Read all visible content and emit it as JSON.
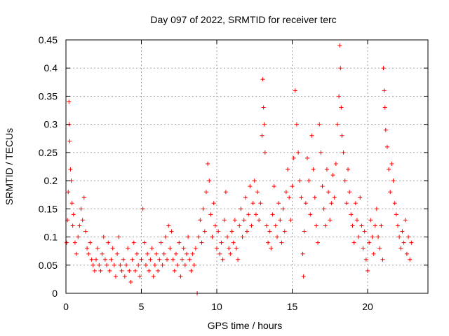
{
  "chart_data": {
    "type": "scatter",
    "title": "Day 097 of 2022, SRMTID for receiver terc",
    "xlabel": "GPS time / hours",
    "ylabel": "SRMTID / TECUs",
    "xlim": [
      0,
      24
    ],
    "ylim": [
      0,
      0.45
    ],
    "xticks": [
      0,
      5,
      10,
      15,
      20
    ],
    "xtick_labels": [
      "0",
      "5",
      "10",
      "15",
      "20"
    ],
    "yticks": [
      0,
      0.05,
      0.1,
      0.15,
      0.2,
      0.25,
      0.3,
      0.35,
      0.4,
      0.45
    ],
    "ytick_labels": [
      "0",
      "0.05",
      "0.1",
      "0.15",
      "0.2",
      "0.25",
      "0.3",
      "0.35",
      "0.4",
      "0.45"
    ],
    "grid": true,
    "marker": "+",
    "color": "#ff0000",
    "series": [
      {
        "points": [
          [
            0.05,
            0.09
          ],
          [
            0.1,
            0.13
          ],
          [
            0.15,
            0.18
          ],
          [
            0.2,
            0.34
          ],
          [
            0.22,
            0.3
          ],
          [
            0.25,
            0.27
          ],
          [
            0.3,
            0.22
          ],
          [
            0.35,
            0.2
          ],
          [
            0.4,
            0.16
          ],
          [
            0.45,
            0.12
          ],
          [
            0.5,
            0.14
          ],
          [
            0.6,
            0.09
          ],
          [
            0.7,
            0.07
          ],
          [
            0.8,
            0.1
          ],
          [
            0.9,
            0.12
          ],
          [
            1.0,
            0.15
          ],
          [
            1.1,
            0.13
          ],
          [
            1.2,
            0.17
          ],
          [
            1.3,
            0.11
          ],
          [
            1.4,
            0.08
          ],
          [
            1.5,
            0.07
          ],
          [
            1.6,
            0.09
          ],
          [
            1.7,
            0.06
          ],
          [
            1.8,
            0.05
          ],
          [
            1.9,
            0.04
          ],
          [
            2.0,
            0.06
          ],
          [
            2.1,
            0.08
          ],
          [
            2.2,
            0.05
          ],
          [
            2.3,
            0.04
          ],
          [
            2.4,
            0.07
          ],
          [
            2.5,
            0.1
          ],
          [
            2.6,
            0.06
          ],
          [
            2.7,
            0.05
          ],
          [
            2.8,
            0.09
          ],
          [
            2.9,
            0.04
          ],
          [
            3.0,
            0.06
          ],
          [
            3.1,
            0.08
          ],
          [
            3.2,
            0.05
          ],
          [
            3.3,
            0.03
          ],
          [
            3.4,
            0.07
          ],
          [
            3.5,
            0.1
          ],
          [
            3.6,
            0.05
          ],
          [
            3.7,
            0.04
          ],
          [
            3.8,
            0.06
          ],
          [
            3.9,
            0.03
          ],
          [
            4.0,
            0.05
          ],
          [
            4.1,
            0.08
          ],
          [
            4.2,
            0.04
          ],
          [
            4.3,
            0.02
          ],
          [
            4.4,
            0.06
          ],
          [
            4.5,
            0.09
          ],
          [
            4.6,
            0.04
          ],
          [
            4.7,
            0.07
          ],
          [
            4.8,
            0.05
          ],
          [
            4.9,
            0.03
          ],
          [
            5.0,
            0.06
          ],
          [
            5.1,
            0.15
          ],
          [
            5.2,
            0.09
          ],
          [
            5.3,
            0.05
          ],
          [
            5.4,
            0.07
          ],
          [
            5.5,
            0.04
          ],
          [
            5.6,
            0.06
          ],
          [
            5.7,
            0.08
          ],
          [
            5.8,
            0.03
          ],
          [
            5.9,
            0.05
          ],
          [
            6.0,
            0.07
          ],
          [
            6.1,
            0.04
          ],
          [
            6.2,
            0.06
          ],
          [
            6.3,
            0.09
          ],
          [
            6.4,
            0.05
          ],
          [
            6.5,
            0.07
          ],
          [
            6.6,
            0.1
          ],
          [
            6.7,
            0.06
          ],
          [
            6.8,
            0.12
          ],
          [
            6.9,
            0.08
          ],
          [
            7.0,
            0.11
          ],
          [
            7.1,
            0.06
          ],
          [
            7.2,
            0.04
          ],
          [
            7.3,
            0.07
          ],
          [
            7.4,
            0.05
          ],
          [
            7.5,
            0.09
          ],
          [
            7.6,
            0.03
          ],
          [
            7.7,
            0.06
          ],
          [
            7.8,
            0.08
          ],
          [
            7.9,
            0.05
          ],
          [
            8.0,
            0.07
          ],
          [
            8.1,
            0.1
          ],
          [
            8.2,
            0.06
          ],
          [
            8.3,
            0.04
          ],
          [
            8.4,
            0.07
          ],
          [
            8.5,
            0.05
          ],
          [
            8.6,
            0.08
          ],
          [
            8.7,
            0.0
          ],
          [
            8.8,
            0.1
          ],
          [
            8.9,
            0.13
          ],
          [
            9.0,
            0.09
          ],
          [
            9.1,
            0.15
          ],
          [
            9.2,
            0.11
          ],
          [
            9.3,
            0.18
          ],
          [
            9.4,
            0.23
          ],
          [
            9.5,
            0.2
          ],
          [
            9.6,
            0.14
          ],
          [
            9.7,
            0.1
          ],
          [
            9.8,
            0.16
          ],
          [
            9.9,
            0.12
          ],
          [
            10.0,
            0.08
          ],
          [
            10.1,
            0.11
          ],
          [
            10.2,
            0.07
          ],
          [
            10.3,
            0.09
          ],
          [
            10.4,
            0.06
          ],
          [
            10.5,
            0.13
          ],
          [
            10.6,
            0.18
          ],
          [
            10.7,
            0.1
          ],
          [
            10.8,
            0.08
          ],
          [
            10.9,
            0.07
          ],
          [
            11.0,
            0.11
          ],
          [
            11.1,
            0.09
          ],
          [
            11.2,
            0.13
          ],
          [
            11.3,
            0.08
          ],
          [
            11.4,
            0.06
          ],
          [
            11.5,
            0.12
          ],
          [
            11.6,
            0.15
          ],
          [
            11.7,
            0.1
          ],
          [
            11.8,
            0.13
          ],
          [
            11.9,
            0.17
          ],
          [
            12.0,
            0.11
          ],
          [
            12.1,
            0.14
          ],
          [
            12.2,
            0.19
          ],
          [
            12.3,
            0.12
          ],
          [
            12.4,
            0.16
          ],
          [
            12.5,
            0.2
          ],
          [
            12.6,
            0.14
          ],
          [
            12.7,
            0.18
          ],
          [
            12.8,
            0.13
          ],
          [
            12.9,
            0.16
          ],
          [
            13.0,
            0.28
          ],
          [
            13.05,
            0.38
          ],
          [
            13.1,
            0.33
          ],
          [
            13.15,
            0.3
          ],
          [
            13.2,
            0.25
          ],
          [
            13.3,
            0.12
          ],
          [
            13.4,
            0.09
          ],
          [
            13.5,
            0.11
          ],
          [
            13.6,
            0.08
          ],
          [
            13.7,
            0.14
          ],
          [
            13.8,
            0.19
          ],
          [
            13.9,
            0.12
          ],
          [
            14.0,
            0.1
          ],
          [
            14.1,
            0.16
          ],
          [
            14.2,
            0.13
          ],
          [
            14.3,
            0.09
          ],
          [
            14.4,
            0.15
          ],
          [
            14.5,
            0.11
          ],
          [
            14.6,
            0.18
          ],
          [
            14.7,
            0.22
          ],
          [
            14.8,
            0.17
          ],
          [
            14.9,
            0.13
          ],
          [
            15.0,
            0.19
          ],
          [
            15.1,
            0.24
          ],
          [
            15.2,
            0.36
          ],
          [
            15.3,
            0.3
          ],
          [
            15.4,
            0.25
          ],
          [
            15.5,
            0.2
          ],
          [
            15.6,
            0.17
          ],
          [
            15.7,
            0.07
          ],
          [
            15.75,
            0.03
          ],
          [
            15.8,
            0.11
          ],
          [
            15.9,
            0.16
          ],
          [
            16.0,
            0.24
          ],
          [
            16.1,
            0.2
          ],
          [
            16.2,
            0.14
          ],
          [
            16.3,
            0.28
          ],
          [
            16.4,
            0.22
          ],
          [
            16.5,
            0.17
          ],
          [
            16.6,
            0.12
          ],
          [
            16.7,
            0.09
          ],
          [
            16.8,
            0.3
          ],
          [
            16.9,
            0.25
          ],
          [
            17.0,
            0.19
          ],
          [
            17.1,
            0.15
          ],
          [
            17.2,
            0.12
          ],
          [
            17.3,
            0.22
          ],
          [
            17.4,
            0.18
          ],
          [
            17.5,
            0.13
          ],
          [
            17.6,
            0.16
          ],
          [
            17.7,
            0.21
          ],
          [
            17.8,
            0.17
          ],
          [
            17.9,
            0.23
          ],
          [
            18.0,
            0.3
          ],
          [
            18.1,
            0.35
          ],
          [
            18.15,
            0.44
          ],
          [
            18.2,
            0.4
          ],
          [
            18.25,
            0.33
          ],
          [
            18.3,
            0.28
          ],
          [
            18.4,
            0.25
          ],
          [
            18.5,
            0.2
          ],
          [
            18.6,
            0.16
          ],
          [
            18.7,
            0.22
          ],
          [
            18.8,
            0.18
          ],
          [
            18.9,
            0.14
          ],
          [
            19.0,
            0.12
          ],
          [
            19.1,
            0.09
          ],
          [
            19.2,
            0.16
          ],
          [
            19.3,
            0.13
          ],
          [
            19.4,
            0.1
          ],
          [
            19.5,
            0.17
          ],
          [
            19.6,
            0.12
          ],
          [
            19.7,
            0.08
          ],
          [
            19.8,
            0.11
          ],
          [
            19.9,
            0.06
          ],
          [
            20.0,
            0.04
          ],
          [
            20.1,
            0.09
          ],
          [
            20.2,
            0.13
          ],
          [
            20.3,
            0.1
          ],
          [
            20.4,
            0.07
          ],
          [
            20.5,
            0.12
          ],
          [
            20.6,
            0.15
          ],
          [
            20.7,
            0.1
          ],
          [
            20.8,
            0.08
          ],
          [
            20.9,
            0.12
          ],
          [
            21.0,
            0.06
          ],
          [
            21.05,
            0.4
          ],
          [
            21.1,
            0.36
          ],
          [
            21.15,
            0.33
          ],
          [
            21.2,
            0.29
          ],
          [
            21.3,
            0.26
          ],
          [
            21.4,
            0.22
          ],
          [
            21.5,
            0.18
          ],
          [
            21.6,
            0.23
          ],
          [
            21.7,
            0.2
          ],
          [
            21.8,
            0.16
          ],
          [
            21.9,
            0.14
          ],
          [
            22.0,
            0.12
          ],
          [
            22.1,
            0.1
          ],
          [
            22.2,
            0.08
          ],
          [
            22.3,
            0.11
          ],
          [
            22.4,
            0.09
          ],
          [
            22.5,
            0.13
          ],
          [
            22.6,
            0.07
          ],
          [
            22.7,
            0.1
          ],
          [
            22.8,
            0.06
          ],
          [
            22.9,
            0.09
          ]
        ]
      }
    ]
  }
}
